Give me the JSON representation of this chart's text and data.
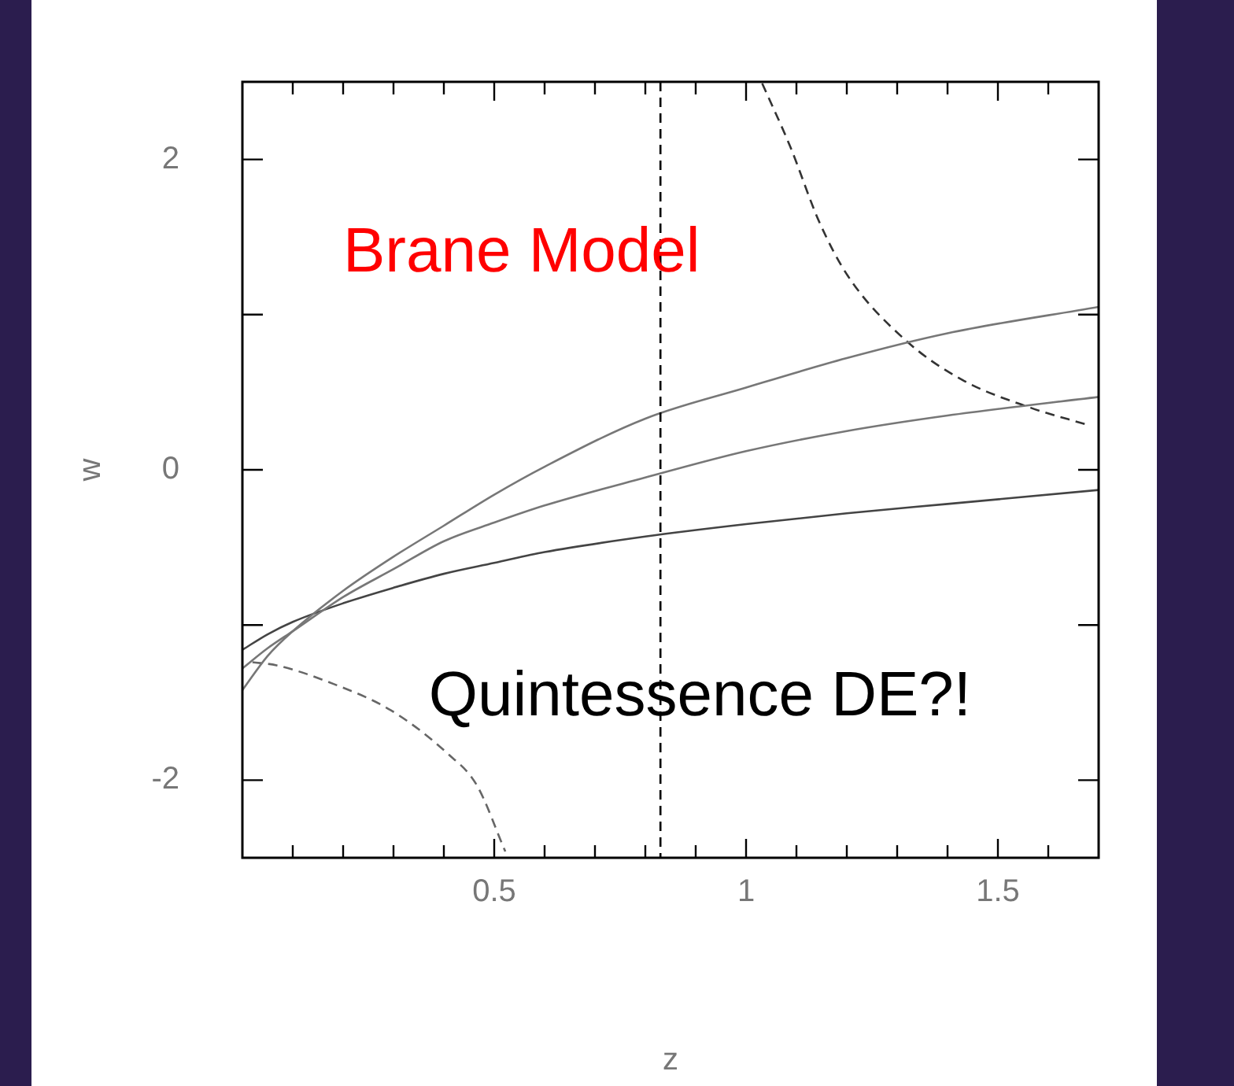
{
  "chart_data": {
    "type": "line",
    "xlabel": "z",
    "ylabel": "w",
    "annotations": [
      "Brane Model",
      "Quintessence DE?!"
    ],
    "series": [
      {
        "color": "#777777",
        "x": [
          0,
          0.05,
          0.1,
          0.2,
          0.3,
          0.4,
          0.5,
          0.6,
          0.8,
          1.0,
          1.2,
          1.4,
          1.7
        ],
        "values": [
          -1.42,
          -1.2,
          -1.04,
          -0.78,
          -0.56,
          -0.36,
          -0.16,
          0.02,
          0.33,
          0.53,
          0.72,
          0.88,
          1.05
        ]
      },
      {
        "color": "#777777",
        "x": [
          0,
          0.05,
          0.1,
          0.2,
          0.3,
          0.4,
          0.5,
          0.6,
          0.8,
          1.0,
          1.2,
          1.4,
          1.7
        ],
        "values": [
          -1.28,
          -1.15,
          -1.04,
          -0.82,
          -0.64,
          -0.46,
          -0.34,
          -0.23,
          -0.05,
          0.12,
          0.25,
          0.35,
          0.47
        ]
      },
      {
        "color": "#444444",
        "x": [
          0,
          0.05,
          0.1,
          0.2,
          0.3,
          0.4,
          0.5,
          0.6,
          0.8,
          1.0,
          1.2,
          1.4,
          1.7
        ],
        "values": [
          -1.16,
          -1.06,
          -0.98,
          -0.86,
          -0.76,
          -0.67,
          -0.6,
          -0.53,
          -0.43,
          -0.35,
          -0.28,
          -0.22,
          -0.13
        ]
      },
      {
        "color": "#333333",
        "line_style": "dashed",
        "x": [
          1.032,
          1.088,
          1.145,
          1.202,
          1.315,
          1.429,
          1.565,
          1.678
        ],
        "values": [
          2.49,
          2.08,
          1.6,
          1.25,
          0.84,
          0.58,
          0.4,
          0.29
        ]
      },
      {
        "color": "#666666",
        "line_style": "dashed",
        "x": [
          0.02,
          0.068,
          0.181,
          0.295,
          0.408,
          0.465,
          0.522
        ],
        "values": [
          -1.24,
          -1.26,
          -1.38,
          -1.55,
          -1.83,
          -2.03,
          -2.46
        ]
      }
    ],
    "ref_lines": [
      {
        "axis": "x",
        "value": 0.83,
        "color": "#000000",
        "line_style": "dashed"
      }
    ],
    "xlim": [
      0,
      1.7
    ],
    "xticks": [
      {
        "value": 0.1,
        "label": null
      },
      {
        "value": 0.2,
        "label": null
      },
      {
        "value": 0.3,
        "label": null
      },
      {
        "value": 0.4,
        "label": null
      },
      0.5,
      {
        "value": 0.6,
        "label": null
      },
      {
        "value": 0.7,
        "label": null
      },
      {
        "value": 0.8,
        "label": null
      },
      {
        "value": 0.9,
        "label": null
      },
      1,
      {
        "value": 1.1,
        "label": null
      },
      {
        "value": 1.2,
        "label": null
      },
      {
        "value": 1.3,
        "label": null
      },
      {
        "value": 1.4,
        "label": null
      },
      1.5,
      {
        "value": 1.6,
        "label": null
      }
    ],
    "ylim": [
      -2.5,
      2.5
    ],
    "yticks": [
      -2,
      {
        "value": -1,
        "label": null
      },
      0,
      {
        "value": 1,
        "label": null
      },
      2
    ],
    "grid": false,
    "legend": false,
    "marker": "none"
  }
}
